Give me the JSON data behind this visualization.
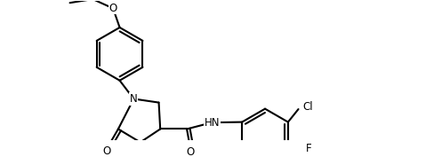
{
  "background_color": "#ffffff",
  "line_color": "#000000",
  "line_width": 1.5,
  "font_size": 8.5,
  "figsize": [
    4.89,
    1.77
  ],
  "dpi": 100,
  "xlim": [
    0.0,
    9.8
  ],
  "ylim": [
    0.0,
    3.8
  ]
}
